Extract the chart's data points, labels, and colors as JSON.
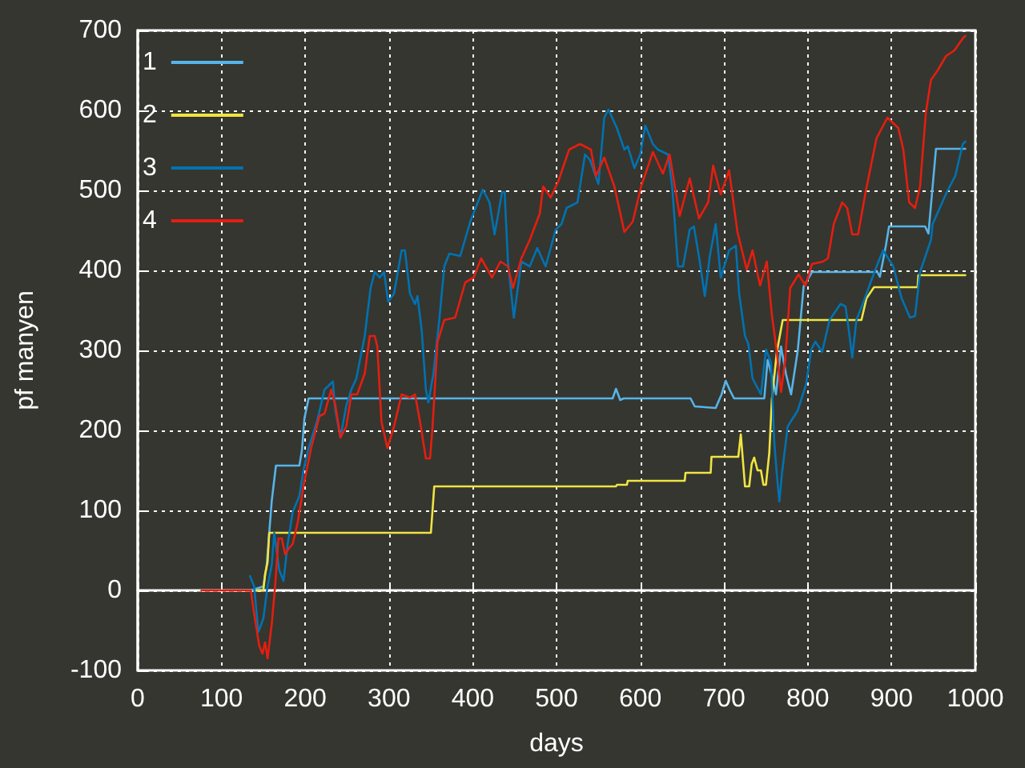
{
  "chart_data": {
    "type": "line",
    "xlabel": "days",
    "ylabel": "pf manyen",
    "xlim": [
      0,
      1000
    ],
    "xticks": [
      0,
      100,
      200,
      300,
      400,
      500,
      600,
      700,
      800,
      900,
      1000
    ],
    "ylim": [
      -100,
      700
    ],
    "yticks": [
      -100,
      0,
      100,
      200,
      300,
      400,
      500,
      600,
      700
    ],
    "grid": true,
    "legend": "top left",
    "marker": "none",
    "line_style": "solid",
    "series": [
      {
        "name": "1",
        "color": "#56b4e9",
        "x": [
          135,
          150,
          154,
          160,
          165,
          193,
          196,
          199,
          204,
          567,
          571,
          576,
          580,
          660,
          665,
          690,
          697,
          702,
          707,
          712,
          748,
          752,
          758,
          762,
          768,
          774,
          780,
          788,
          795,
          805,
          883,
          886,
          893,
          897,
          940,
          944,
          953,
          988
        ],
        "values": [
          0,
          5,
          32,
          112,
          156,
          156,
          175,
          215,
          240,
          240,
          252,
          238,
          240,
          240,
          230,
          228,
          245,
          262,
          250,
          240,
          240,
          288,
          265,
          245,
          305,
          270,
          245,
          300,
          380,
          398,
          398,
          392,
          430,
          455,
          455,
          446,
          552,
          552
        ]
      },
      {
        "name": "2",
        "color": "#f0e442",
        "x": [
          140,
          150,
          152,
          155,
          157,
          350,
          354,
          571,
          572,
          584,
          585,
          653,
          654,
          684,
          685,
          717,
          720,
          725,
          730,
          733,
          736,
          740,
          744,
          747,
          750,
          754,
          757,
          763,
          770,
          864,
          870,
          879,
          931,
          932,
          988
        ],
        "values": [
          0,
          0,
          20,
          35,
          72,
          72,
          130,
          130,
          132,
          132,
          137,
          137,
          147,
          147,
          167,
          167,
          195,
          130,
          130,
          158,
          166,
          150,
          150,
          132,
          132,
          172,
          238,
          298,
          338,
          338,
          365,
          379,
          379,
          394,
          394
        ]
      },
      {
        "name": "3",
        "color": "#0072b2",
        "x": [
          134,
          139,
          144,
          150,
          155,
          160,
          163,
          169,
          174,
          179,
          185,
          193,
          198,
          204,
          214,
          223,
          233,
          236,
          242,
          249,
          255,
          261,
          271,
          278,
          283,
          289,
          294,
          299,
          306,
          315,
          319,
          325,
          331,
          334,
          339,
          344,
          347,
          353,
          360,
          366,
          372,
          385,
          397,
          412,
          420,
          426,
          435,
          438,
          442,
          449,
          458,
          468,
          477,
          487,
          499,
          506,
          512,
          525,
          534,
          540,
          550,
          557,
          562,
          572,
          581,
          585,
          593,
          600,
          606,
          615,
          621,
          633,
          638,
          645,
          651,
          659,
          664,
          671,
          677,
          683,
          690,
          696,
          706,
          714,
          718,
          725,
          729,
          734,
          739,
          744,
          750,
          756,
          760,
          763,
          766,
          769,
          776,
          788,
          798,
          804,
          809,
          817,
          826,
          839,
          845,
          849,
          853,
          858,
          868,
          877,
          887,
          890,
          902,
          912,
          922,
          928,
          934,
          947,
          949,
          966,
          976,
          985,
          988
        ],
        "values": [
          18,
          5,
          -52,
          -35,
          5,
          32,
          72,
          25,
          12,
          58,
          98,
          118,
          151,
          178,
          211,
          251,
          261,
          225,
          191,
          231,
          251,
          265,
          318,
          378,
          398,
          391,
          398,
          361,
          371,
          425,
          425,
          371,
          358,
          368,
          325,
          251,
          235,
          271,
          338,
          405,
          421,
          418,
          461,
          501,
          485,
          445,
          498,
          498,
          411,
          341,
          411,
          405,
          428,
          405,
          451,
          458,
          478,
          485,
          545,
          538,
          508,
          591,
          601,
          578,
          551,
          555,
          528,
          545,
          581,
          558,
          551,
          545,
          505,
          405,
          405,
          451,
          455,
          411,
          368,
          418,
          458,
          391,
          425,
          431,
          371,
          318,
          308,
          265,
          255,
          245,
          301,
          285,
          185,
          145,
          111,
          145,
          205,
          225,
          258,
          301,
          311,
          298,
          338,
          358,
          355,
          325,
          291,
          338,
          365,
          391,
          418,
          425,
          405,
          365,
          341,
          343,
          398,
          438,
          458,
          498,
          518,
          558,
          561
        ]
      },
      {
        "name": "4",
        "color": "#e51e10",
        "x": [
          76,
          135,
          139,
          145,
          149,
          152,
          155,
          160,
          164,
          168,
          172,
          176,
          180,
          185,
          191,
          198,
          207,
          217,
          223,
          231,
          236,
          242,
          249,
          255,
          262,
          271,
          277,
          283,
          286,
          291,
          298,
          306,
          315,
          325,
          331,
          337,
          344,
          349,
          352,
          358,
          366,
          379,
          391,
          401,
          410,
          423,
          433,
          442,
          448,
          458,
          468,
          480,
          484,
          493,
          502,
          515,
          528,
          541,
          547,
          557,
          569,
          581,
          591,
          601,
          615,
          627,
          635,
          647,
          659,
          670,
          681,
          687,
          696,
          706,
          716,
          727,
          734,
          743,
          751,
          757,
          763,
          768,
          773,
          779,
          789,
          797,
          805,
          818,
          824,
          831,
          841,
          847,
          853,
          860,
          869,
          882,
          895,
          908,
          914,
          921,
          928,
          934,
          941,
          947,
          955,
          965,
          975,
          985,
          988
        ],
        "values": [
          0,
          0,
          -29,
          -69,
          -79,
          -65,
          -85,
          -42,
          5,
          65,
          65,
          45,
          52,
          58,
          85,
          131,
          178,
          218,
          221,
          251,
          231,
          191,
          205,
          245,
          245,
          271,
          318,
          318,
          305,
          211,
          178,
          205,
          245,
          241,
          245,
          211,
          165,
          165,
          205,
          311,
          338,
          341,
          385,
          391,
          415,
          391,
          411,
          405,
          378,
          415,
          438,
          471,
          505,
          491,
          511,
          551,
          558,
          551,
          518,
          541,
          505,
          448,
          461,
          505,
          548,
          521,
          545,
          468,
          515,
          465,
          485,
          531,
          495,
          525,
          448,
          401,
          425,
          381,
          411,
          345,
          298,
          248,
          288,
          378,
          395,
          381,
          408,
          411,
          415,
          458,
          485,
          478,
          445,
          445,
          498,
          565,
          591,
          578,
          551,
          485,
          478,
          505,
          598,
          638,
          650,
          668,
          675,
          690,
          693
        ]
      }
    ]
  }
}
